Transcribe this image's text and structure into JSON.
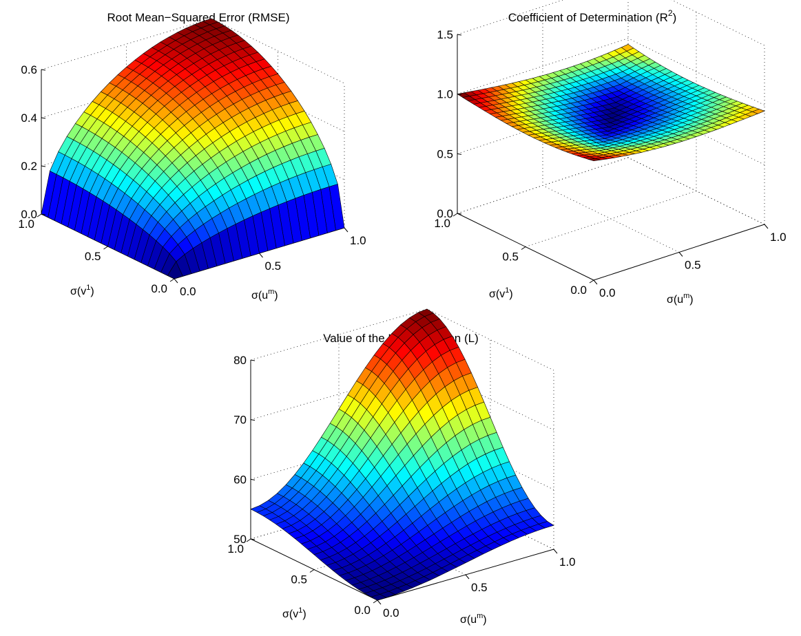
{
  "chart_data": [
    {
      "type": "surface",
      "title": "Root Mean−Squared Error (RMSE)",
      "xlabel": "σ(u",
      "xlabel_sup": "m",
      "xlabel_end": ")",
      "ylabel": "σ(v",
      "ylabel_sup": "1",
      "ylabel_end": ")",
      "xlim": [
        0,
        1
      ],
      "ylim": [
        0,
        1
      ],
      "zlim": [
        0,
        0.6
      ],
      "xticks": [
        "0.0",
        "0.5",
        "1.0"
      ],
      "yticks": [
        "0.0",
        "0.5",
        "1.0"
      ],
      "zticks": [
        "0.0",
        "0.2",
        "0.4",
        "0.6"
      ],
      "grid": true,
      "colormap": "jet",
      "surface": {
        "grid_size": 21,
        "description_values": {
          "z_at_0_0": 0.0,
          "z_at_1_0": 0.0,
          "z_at_0_1": 0.0,
          "z_at_1_1": 0.6
        }
      }
    },
    {
      "type": "surface",
      "title": "Coefficient of Determination (R",
      "title_sup": "2",
      "title_end": ")",
      "xlabel": "σ(u",
      "xlabel_sup": "m",
      "xlabel_end": ")",
      "ylabel": "σ(v",
      "ylabel_sup": "1",
      "ylabel_end": ")",
      "xlim": [
        0,
        1
      ],
      "ylim": [
        0,
        1
      ],
      "zlim": [
        0,
        1.5
      ],
      "xticks": [
        "0.0",
        "0.5",
        "1.0"
      ],
      "yticks": [
        "0.0",
        "0.5",
        "1.0"
      ],
      "zticks": [
        "0.0",
        "0.5",
        "1.0",
        "1.5"
      ],
      "grid": true,
      "colormap": "jet",
      "surface": {
        "grid_size": 26,
        "description_values": {
          "z_at_0_0": 1.0,
          "z_at_1_0": 1.0,
          "z_at_0_1": 1.0,
          "z_at_1_1": 0.9,
          "z_min": 0.85
        }
      }
    },
    {
      "type": "surface",
      "title": "Value of the Loss Function (L)",
      "xlabel": "σ(u",
      "xlabel_sup": "m",
      "xlabel_end": ")",
      "ylabel": "σ(v",
      "ylabel_sup": "1",
      "ylabel_end": ")",
      "xlim": [
        0,
        1
      ],
      "ylim": [
        0,
        1
      ],
      "zlim": [
        50,
        80
      ],
      "xticks": [
        "0.0",
        "0.5",
        "1.0"
      ],
      "yticks": [
        "0.0",
        "0.5",
        "1.0"
      ],
      "zticks": [
        "50",
        "60",
        "70",
        "80"
      ],
      "grid": true,
      "colormap": "jet",
      "surface": {
        "grid_size": 21,
        "description_values": {
          "z_at_0_0": 50.0,
          "z_at_1_0": 54.0,
          "z_at_0_1": 55.0,
          "z_at_1_1": 80.0
        }
      }
    }
  ]
}
